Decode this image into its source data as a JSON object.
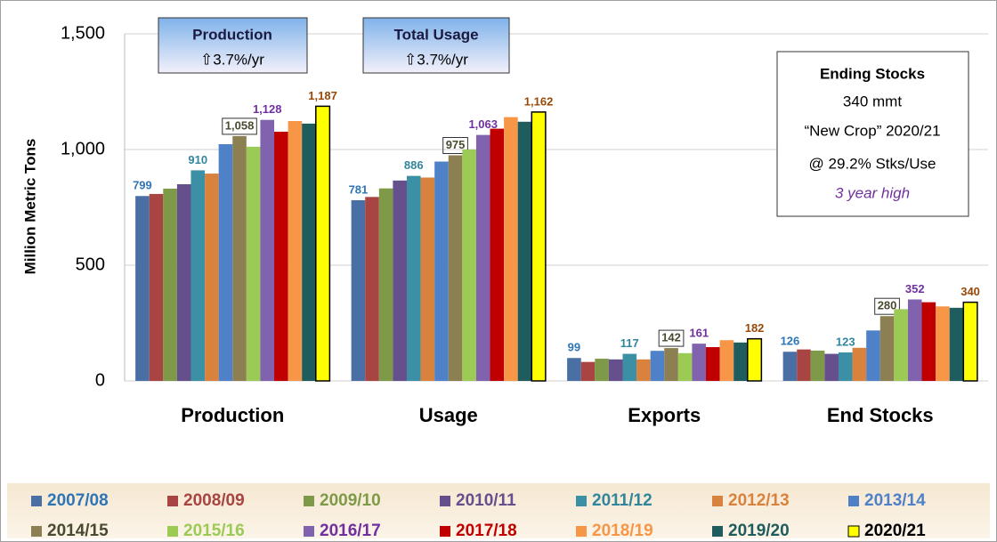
{
  "chart_data": {
    "type": "bar",
    "y_label": "Million Metric Tons",
    "categories": [
      "Production",
      "Usage",
      "Exports",
      "End Stocks"
    ],
    "ylim": [
      0,
      1500
    ],
    "yticks": [
      0,
      500,
      {
        "value": 1000,
        "label": "1,000"
      },
      {
        "value": 1500,
        "label": "1,500"
      }
    ],
    "grid": true,
    "series": [
      {
        "name": "2007/08",
        "color": "#4a6fa5",
        "label_color": "#2e75b6",
        "values": [
          799,
          781,
          99,
          126
        ],
        "value_labels": [
          "799",
          "781",
          "99",
          "126"
        ]
      },
      {
        "name": "2008/09",
        "color": "#a84442",
        "values": [
          808,
          795,
          82,
          136
        ]
      },
      {
        "name": "2009/10",
        "color": "#7e9a48",
        "values": [
          831,
          832,
          96,
          131
        ]
      },
      {
        "name": "2010/11",
        "color": "#654f8c",
        "values": [
          850,
          866,
          93,
          117
        ]
      },
      {
        "name": "2011/12",
        "color": "#3b90a6",
        "label_color": "#31859c",
        "values": [
          910,
          886,
          117,
          123
        ],
        "value_labels": [
          "910",
          "886",
          "117",
          "123"
        ]
      },
      {
        "name": "2012/13",
        "color": "#d9823e",
        "values": [
          896,
          879,
          93,
          143
        ]
      },
      {
        "name": "2013/14",
        "color": "#4f81c8",
        "values": [
          1023,
          948,
          130,
          218
        ]
      },
      {
        "name": "2014/15",
        "color": "#8c7f52",
        "label_color": "#4a4a30",
        "label_boxed": true,
        "values": [
          1058,
          975,
          142,
          280
        ],
        "value_labels": [
          "1,058",
          "975",
          "142",
          "280"
        ]
      },
      {
        "name": "2015/16",
        "color": "#9bca55",
        "values": [
          1012,
          1000,
          120,
          310
        ]
      },
      {
        "name": "2016/17",
        "color": "#8062ae",
        "label_color": "#7030a0",
        "values": [
          1128,
          1063,
          161,
          352
        ],
        "value_labels": [
          "1,128",
          "1,063",
          "161",
          "352"
        ]
      },
      {
        "name": "2017/18",
        "color": "#c00000",
        "values": [
          1077,
          1090,
          146,
          340
        ]
      },
      {
        "name": "2018/19",
        "color": "#f79646",
        "values": [
          1123,
          1140,
          176,
          322
        ]
      },
      {
        "name": "2019/20",
        "color": "#1f5c5e",
        "values": [
          1112,
          1120,
          166,
          316
        ]
      },
      {
        "name": "2020/21",
        "color": "#ffff00",
        "label_color": "#984807",
        "values": [
          1187,
          1162,
          182,
          340
        ],
        "value_labels": [
          "1,187",
          "1,162",
          "182",
          "340"
        ]
      }
    ],
    "annotations": {
      "production_box": {
        "title": "Production",
        "text": "⇧3.7%/yr"
      },
      "usage_box": {
        "title": "Total Usage",
        "text": "⇧3.7%/yr"
      },
      "stocks_box": {
        "title": "Ending Stocks",
        "lines": [
          "340 mmt",
          "“New Crop” 2020/21",
          "@ 29.2% Stks/Use"
        ],
        "note": "3 year high"
      }
    }
  }
}
